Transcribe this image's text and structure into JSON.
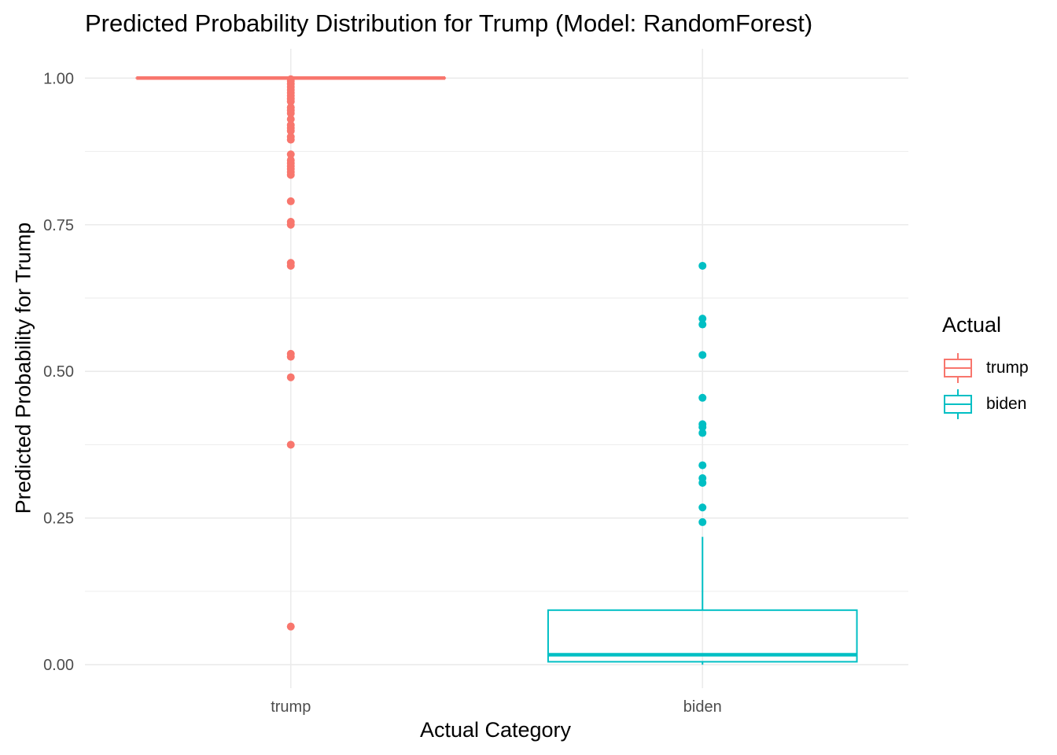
{
  "chart_data": {
    "type": "boxplot",
    "title": "Predicted Probability Distribution for Trump (Model: RandomForest)",
    "xlabel": "Actual Category",
    "ylabel": "Predicted Probability for Trump",
    "ylim": [
      -0.04,
      1.05
    ],
    "yticks": [
      0.0,
      0.25,
      0.5,
      0.75,
      1.0
    ],
    "ytick_labels": [
      "0.00",
      "0.25",
      "0.50",
      "0.75",
      "1.00"
    ],
    "categories": [
      "trump",
      "biden"
    ],
    "grid": true,
    "legend": {
      "title": "Actual",
      "placement": "right"
    },
    "colors": {
      "trump": "#f8766d",
      "biden": "#00bfc4",
      "grid": "#ebebeb",
      "axis_text": "#4d4d4d"
    },
    "series": [
      {
        "name": "trump",
        "q1": 1.0,
        "median": 1.0,
        "q3": 1.0,
        "whisker_low": 1.0,
        "whisker_high": 1.0,
        "outliers": [
          0.998,
          0.995,
          0.99,
          0.985,
          0.98,
          0.975,
          0.97,
          0.965,
          0.96,
          0.95,
          0.945,
          0.94,
          0.93,
          0.92,
          0.915,
          0.91,
          0.9,
          0.895,
          0.87,
          0.86,
          0.855,
          0.85,
          0.845,
          0.84,
          0.835,
          0.79,
          0.755,
          0.75,
          0.685,
          0.68,
          0.53,
          0.525,
          0.49,
          0.375,
          0.065
        ]
      },
      {
        "name": "biden",
        "q1": 0.005,
        "median": 0.017,
        "q3": 0.093,
        "whisker_low": 0.0,
        "whisker_high": 0.218,
        "outliers": [
          0.68,
          0.59,
          0.58,
          0.528,
          0.455,
          0.41,
          0.405,
          0.395,
          0.34,
          0.318,
          0.31,
          0.268,
          0.243
        ]
      }
    ]
  }
}
